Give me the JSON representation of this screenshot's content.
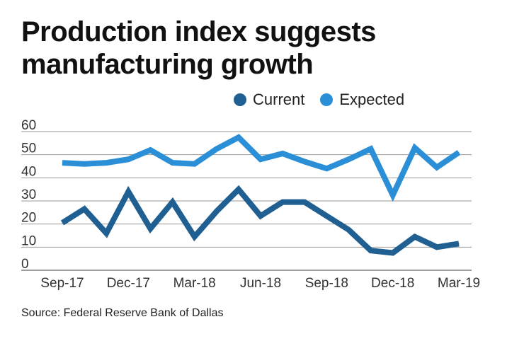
{
  "chart_data": {
    "type": "line",
    "title": "Production index suggests manufacturing growth",
    "title_lines": [
      "Production index suggests",
      "manufacturing growth"
    ],
    "categories": [
      "Sep-17",
      "Oct-17",
      "Nov-17",
      "Dec-17",
      "Jan-18",
      "Feb-18",
      "Mar-18",
      "Apr-18",
      "May-18",
      "Jun-18",
      "Jul-18",
      "Aug-18",
      "Sep-18",
      "Oct-18",
      "Nov-18",
      "Dec-18",
      "Jan-19",
      "Feb-19",
      "Mar-19"
    ],
    "x_tick_labels": [
      "Sep-17",
      "Dec-17",
      "Mar-18",
      "Jun-18",
      "Sep-18",
      "Dec-18",
      "Mar-19"
    ],
    "y_ticks": [
      "60",
      "50",
      "40",
      "30",
      "20",
      "10",
      "0"
    ],
    "ylim": [
      0,
      60
    ],
    "grid": true,
    "legend_position": "top-right",
    "series": [
      {
        "name": "Current",
        "color": "#1f5f91",
        "values": [
          20.5,
          26.5,
          16,
          34,
          18,
          29.5,
          14.5,
          25.5,
          35,
          23.5,
          29.5,
          29.5,
          23.5,
          17.5,
          8.5,
          7.5,
          14.5,
          10,
          11.5
        ]
      },
      {
        "name": "Expected",
        "color": "#2a8fd6",
        "values": [
          46.5,
          46,
          46.5,
          48,
          52,
          46.5,
          46,
          52.5,
          57.5,
          48,
          50.5,
          47,
          44,
          48,
          52.5,
          32.5,
          53,
          44.5,
          51
        ]
      }
    ]
  },
  "legend": {
    "current": "Current",
    "expected": "Expected"
  },
  "source": "Source: Federal Reserve Bank of Dallas"
}
